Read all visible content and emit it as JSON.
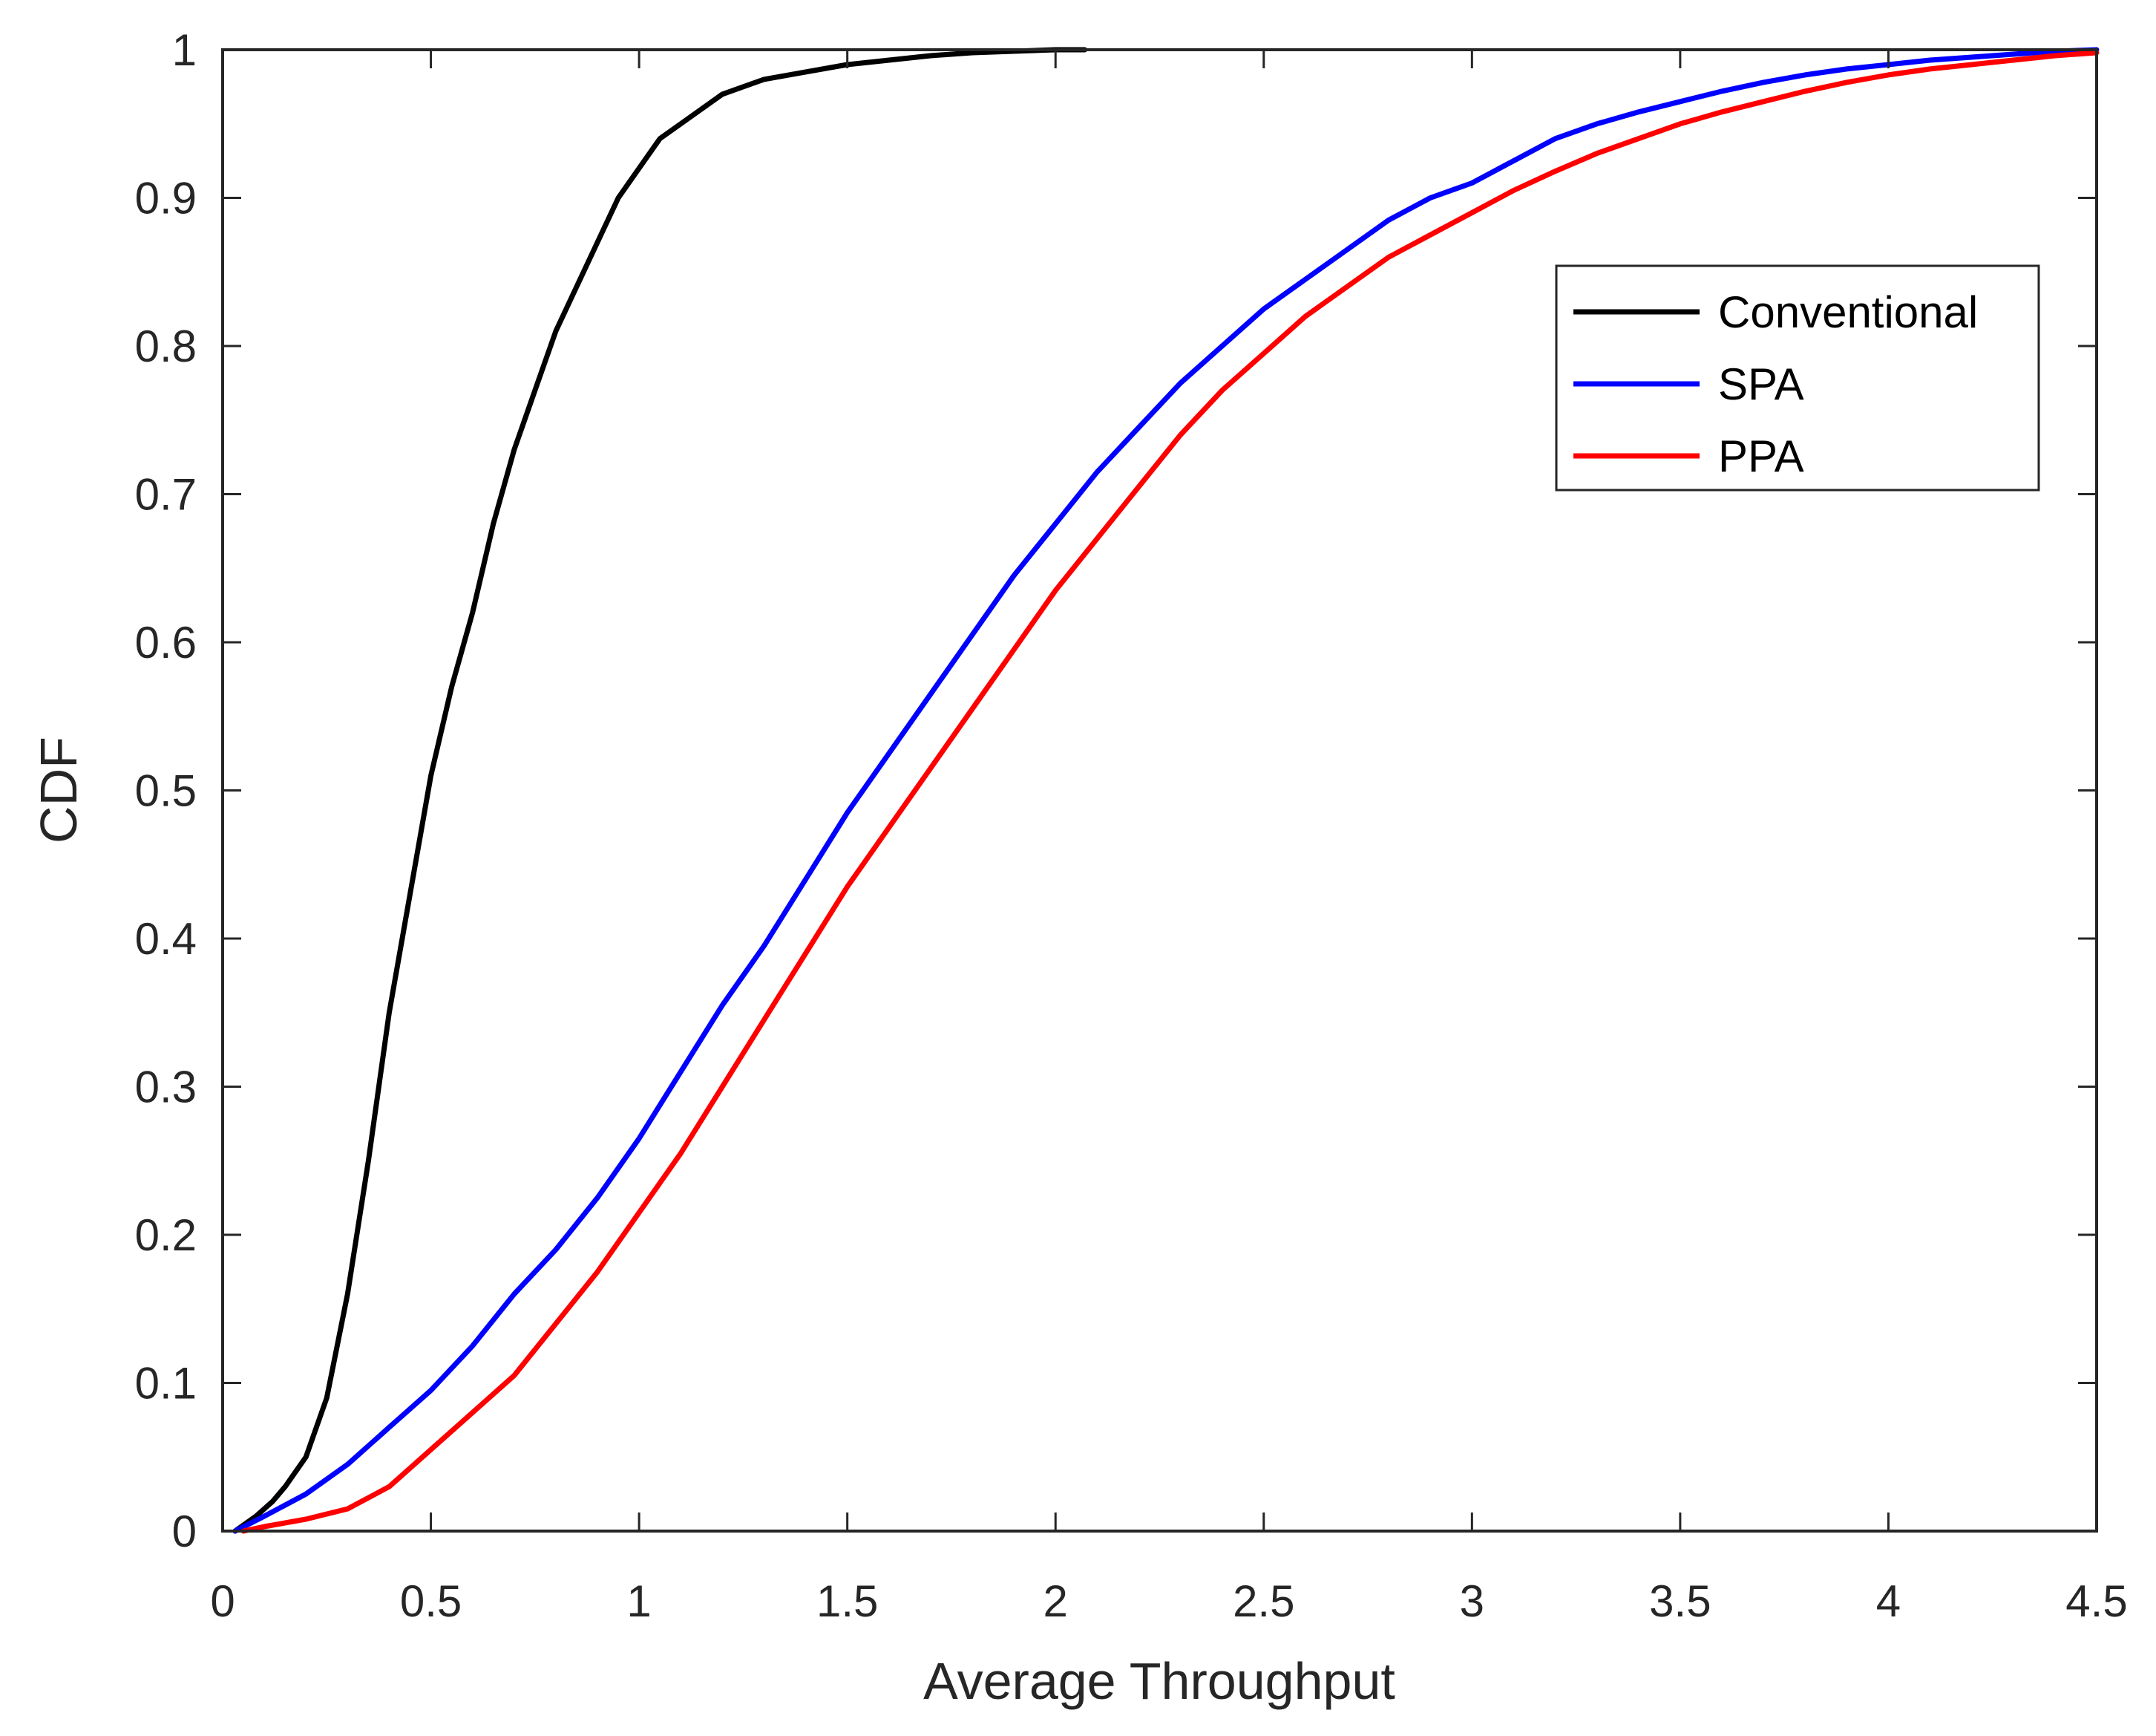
{
  "chart_data": {
    "type": "line",
    "title": "",
    "xlabel": "Average Throughput",
    "ylabel": "CDF",
    "xlim": [
      0,
      4.5
    ],
    "ylim": [
      0,
      1
    ],
    "xticks": [
      0,
      0.5,
      1,
      1.5,
      2,
      2.5,
      3,
      3.5,
      4,
      4.5
    ],
    "xtick_labels": [
      "0",
      "0.5",
      "1",
      "1.5",
      "2",
      "2.5",
      "3",
      "3.5",
      "4",
      "4.5"
    ],
    "yticks": [
      0,
      0.1,
      0.2,
      0.3,
      0.4,
      0.5,
      0.6,
      0.7,
      0.8,
      0.9,
      1
    ],
    "ytick_labels": [
      "0",
      "0.1",
      "0.2",
      "0.3",
      "0.4",
      "0.5",
      "0.6",
      "0.7",
      "0.8",
      "0.9",
      "1"
    ],
    "grid": false,
    "legend_position": "top-right",
    "series": [
      {
        "name": "Conventional",
        "color": "#000000",
        "x": [
          0.03,
          0.08,
          0.12,
          0.15,
          0.2,
          0.25,
          0.3,
          0.35,
          0.4,
          0.45,
          0.5,
          0.55,
          0.6,
          0.65,
          0.7,
          0.75,
          0.8,
          0.85,
          0.9,
          0.95,
          1.0,
          1.05,
          1.1,
          1.15,
          1.2,
          1.3,
          1.4,
          1.5,
          1.6,
          1.7,
          1.8,
          1.9,
          2.0,
          2.07
        ],
        "y": [
          0.0,
          0.01,
          0.02,
          0.03,
          0.05,
          0.09,
          0.16,
          0.25,
          0.35,
          0.43,
          0.51,
          0.57,
          0.62,
          0.68,
          0.73,
          0.77,
          0.81,
          0.84,
          0.87,
          0.9,
          0.92,
          0.94,
          0.95,
          0.96,
          0.97,
          0.98,
          0.985,
          0.99,
          0.993,
          0.996,
          0.998,
          0.999,
          1.0,
          1.0
        ]
      },
      {
        "name": "SPA",
        "color": "#0000ff",
        "x": [
          0.03,
          0.1,
          0.2,
          0.3,
          0.4,
          0.5,
          0.6,
          0.7,
          0.8,
          0.9,
          1.0,
          1.1,
          1.2,
          1.3,
          1.4,
          1.5,
          1.6,
          1.7,
          1.8,
          1.9,
          2.0,
          2.1,
          2.2,
          2.3,
          2.4,
          2.5,
          2.6,
          2.7,
          2.8,
          2.9,
          3.0,
          3.1,
          3.2,
          3.3,
          3.4,
          3.5,
          3.6,
          3.7,
          3.8,
          3.9,
          4.0,
          4.1,
          4.2,
          4.3,
          4.4,
          4.5
        ],
        "y": [
          0.0,
          0.01,
          0.025,
          0.045,
          0.07,
          0.095,
          0.125,
          0.16,
          0.19,
          0.225,
          0.265,
          0.31,
          0.355,
          0.395,
          0.44,
          0.485,
          0.525,
          0.565,
          0.605,
          0.645,
          0.68,
          0.715,
          0.745,
          0.775,
          0.8,
          0.825,
          0.845,
          0.865,
          0.885,
          0.9,
          0.91,
          0.925,
          0.94,
          0.95,
          0.958,
          0.965,
          0.972,
          0.978,
          0.983,
          0.987,
          0.99,
          0.993,
          0.995,
          0.997,
          0.999,
          1.0
        ]
      },
      {
        "name": "PPA",
        "color": "#ff0000",
        "x": [
          0.05,
          0.1,
          0.2,
          0.3,
          0.4,
          0.5,
          0.6,
          0.7,
          0.8,
          0.9,
          1.0,
          1.1,
          1.2,
          1.3,
          1.4,
          1.5,
          1.6,
          1.7,
          1.8,
          1.9,
          2.0,
          2.1,
          2.2,
          2.3,
          2.4,
          2.5,
          2.6,
          2.7,
          2.8,
          2.9,
          3.0,
          3.1,
          3.2,
          3.3,
          3.4,
          3.5,
          3.6,
          3.7,
          3.8,
          3.9,
          4.0,
          4.1,
          4.2,
          4.3,
          4.4,
          4.5
        ],
        "y": [
          0.0,
          0.003,
          0.008,
          0.015,
          0.03,
          0.055,
          0.08,
          0.105,
          0.14,
          0.175,
          0.215,
          0.255,
          0.3,
          0.345,
          0.39,
          0.435,
          0.475,
          0.515,
          0.555,
          0.595,
          0.635,
          0.67,
          0.705,
          0.74,
          0.77,
          0.795,
          0.82,
          0.84,
          0.86,
          0.875,
          0.89,
          0.905,
          0.918,
          0.93,
          0.94,
          0.95,
          0.958,
          0.965,
          0.972,
          0.978,
          0.983,
          0.987,
          0.99,
          0.993,
          0.996,
          0.998
        ]
      }
    ]
  }
}
